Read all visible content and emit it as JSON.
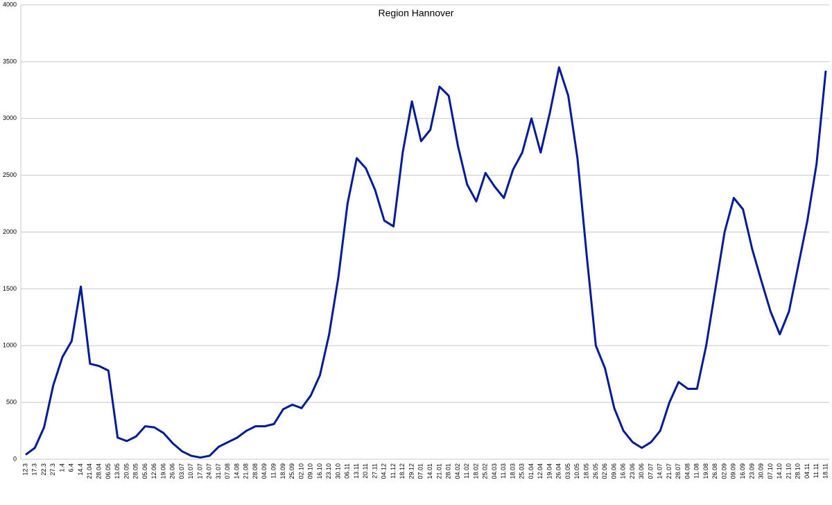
{
  "chart_data": {
    "type": "line",
    "title": "Region Hannover",
    "categories": [
      "12.3",
      "17.3",
      "22.3",
      "27.3",
      "1.4",
      "6.4",
      "14.4",
      "21.04",
      "28.04",
      "06.05",
      "13.05",
      "20.05",
      "28.05",
      "05.06",
      "12.06",
      "19.06",
      "26.06",
      "03.07",
      "10.07",
      "17.07",
      "24.07",
      "31.07",
      "07.08",
      "14.08",
      "21.08",
      "28.08",
      "04.09",
      "11.09",
      "18.09",
      "25.09",
      "02.10",
      "09.10",
      "16.10",
      "23.10",
      "30.10",
      "06.11",
      "13.11",
      "20.11",
      "27.11",
      "04.12",
      "11.12",
      "18.12",
      "29.12",
      "07.01",
      "14.01",
      "21.01",
      "28.01",
      "04.02",
      "11.02",
      "18.02",
      "25.02",
      "04.03",
      "11.03",
      "18.03",
      "25.03",
      "01.04",
      "12.04",
      "19.04",
      "26.04",
      "03.05",
      "10.05",
      "18.05",
      "26.05",
      "02.06",
      "09.06",
      "16.06",
      "23.06",
      "30.06",
      "07.07",
      "14.07",
      "21.07",
      "28.07",
      "04.08",
      "11.08",
      "19.08",
      "26.08",
      "02.09",
      "09.09",
      "16.09",
      "23.09",
      "30.09",
      "07.10",
      "14.10",
      "21.10",
      "28.10",
      "04.11",
      "11.11",
      "18.11"
    ],
    "series": [
      {
        "name": "Region Hannover",
        "color": "#001a9c",
        "values": [
          40,
          100,
          280,
          650,
          900,
          1040,
          1520,
          840,
          820,
          780,
          190,
          160,
          200,
          290,
          280,
          230,
          140,
          70,
          30,
          15,
          30,
          110,
          150,
          190,
          250,
          290,
          290,
          310,
          440,
          480,
          450,
          560,
          740,
          1100,
          1600,
          2250,
          2650,
          2560,
          2370,
          2100,
          2050,
          2700,
          3150,
          2800,
          2900,
          3280,
          3200,
          2760,
          2420,
          2270,
          2520,
          2400,
          2300,
          2550,
          2700,
          3000,
          2700,
          3050,
          3450,
          3200,
          2650,
          1800,
          1000,
          800,
          450,
          250,
          150,
          100,
          150,
          250,
          500,
          680,
          620,
          620,
          1000,
          1500,
          2000,
          2300,
          2200,
          1850,
          1570,
          1300,
          1100,
          1300,
          1700,
          2100,
          2600,
          3420
        ]
      }
    ],
    "ylim": [
      0,
      4000
    ],
    "yticks": [
      0,
      500,
      1000,
      1500,
      2000,
      2500,
      3000,
      3500,
      4000
    ],
    "grid": true
  }
}
